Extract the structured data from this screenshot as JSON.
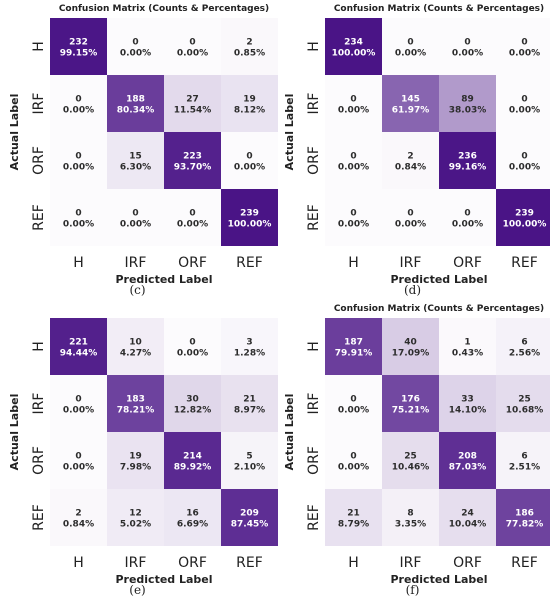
{
  "chart_data": [
    {
      "type": "heatmap",
      "title": "Confusion Matrix (Counts & Percentages)",
      "xlabel": "Predicted Label",
      "ylabel": "Actual Label",
      "x_categories": [
        "H",
        "IRF",
        "ORF",
        "REF"
      ],
      "y_categories": [
        "H",
        "IRF",
        "ORF",
        "REF"
      ],
      "counts": [
        [
          232,
          0,
          0,
          2
        ],
        [
          0,
          188,
          27,
          19
        ],
        [
          0,
          15,
          223,
          0
        ],
        [
          0,
          0,
          0,
          239
        ]
      ],
      "percentages": [
        [
          "99.15%",
          "0.00%",
          "0.00%",
          "0.85%"
        ],
        [
          "0.00%",
          "80.34%",
          "11.54%",
          "8.12%"
        ],
        [
          "0.00%",
          "6.30%",
          "93.70%",
          "0.00%"
        ],
        [
          "0.00%",
          "0.00%",
          "0.00%",
          "100.00%"
        ]
      ],
      "caption": "(c)"
    },
    {
      "type": "heatmap",
      "title": "Confusion Matrix (Counts & Percentages)",
      "xlabel": "Predicted Label",
      "ylabel": "Actual Label",
      "x_categories": [
        "H",
        "IRF",
        "ORF",
        "REF"
      ],
      "y_categories": [
        "H",
        "IRF",
        "ORF",
        "REF"
      ],
      "counts": [
        [
          234,
          0,
          0,
          0
        ],
        [
          0,
          145,
          89,
          0
        ],
        [
          0,
          2,
          236,
          0
        ],
        [
          0,
          0,
          0,
          239
        ]
      ],
      "percentages": [
        [
          "100.00%",
          "0.00%",
          "0.00%",
          "0.00%"
        ],
        [
          "0.00%",
          "61.97%",
          "38.03%",
          "0.00%"
        ],
        [
          "0.00%",
          "0.84%",
          "99.16%",
          "0.00%"
        ],
        [
          "0.00%",
          "0.00%",
          "0.00%",
          "100.00%"
        ]
      ],
      "caption": "(d)"
    },
    {
      "type": "heatmap",
      "title": "",
      "xlabel": "Predicted Label",
      "ylabel": "Actual Label",
      "x_categories": [
        "H",
        "IRF",
        "ORF",
        "REF"
      ],
      "y_categories": [
        "H",
        "IRF",
        "ORF",
        "REF"
      ],
      "counts": [
        [
          221,
          10,
          0,
          3
        ],
        [
          0,
          183,
          30,
          21
        ],
        [
          0,
          19,
          214,
          5
        ],
        [
          2,
          12,
          16,
          209
        ]
      ],
      "percentages": [
        [
          "94.44%",
          "4.27%",
          "0.00%",
          "1.28%"
        ],
        [
          "0.00%",
          "78.21%",
          "12.82%",
          "8.97%"
        ],
        [
          "0.00%",
          "7.98%",
          "89.92%",
          "2.10%"
        ],
        [
          "0.84%",
          "5.02%",
          "6.69%",
          "87.45%"
        ]
      ],
      "caption": "(e)"
    },
    {
      "type": "heatmap",
      "title": "Confusion Matrix (Counts & Percentages)",
      "xlabel": "Predicted Label",
      "ylabel": "Actual Label",
      "x_categories": [
        "H",
        "IRF",
        "ORF",
        "REF"
      ],
      "y_categories": [
        "H",
        "IRF",
        "ORF",
        "REF"
      ],
      "counts": [
        [
          187,
          40,
          1,
          6
        ],
        [
          0,
          176,
          33,
          25
        ],
        [
          0,
          25,
          208,
          6
        ],
        [
          21,
          8,
          24,
          186
        ]
      ],
      "percentages": [
        [
          "79.91%",
          "17.09%",
          "0.43%",
          "2.56%"
        ],
        [
          "0.00%",
          "75.21%",
          "14.10%",
          "10.68%"
        ],
        [
          "0.00%",
          "10.46%",
          "87.03%",
          "2.51%"
        ],
        [
          "8.79%",
          "3.35%",
          "10.04%",
          "77.82%"
        ]
      ],
      "caption": "(f)"
    }
  ],
  "colors": {
    "colormap": "Purples",
    "low": "#fcfbfd",
    "high": "#4a1486",
    "dark_text": "#2d2d2d",
    "light_text": "#ffffff"
  }
}
